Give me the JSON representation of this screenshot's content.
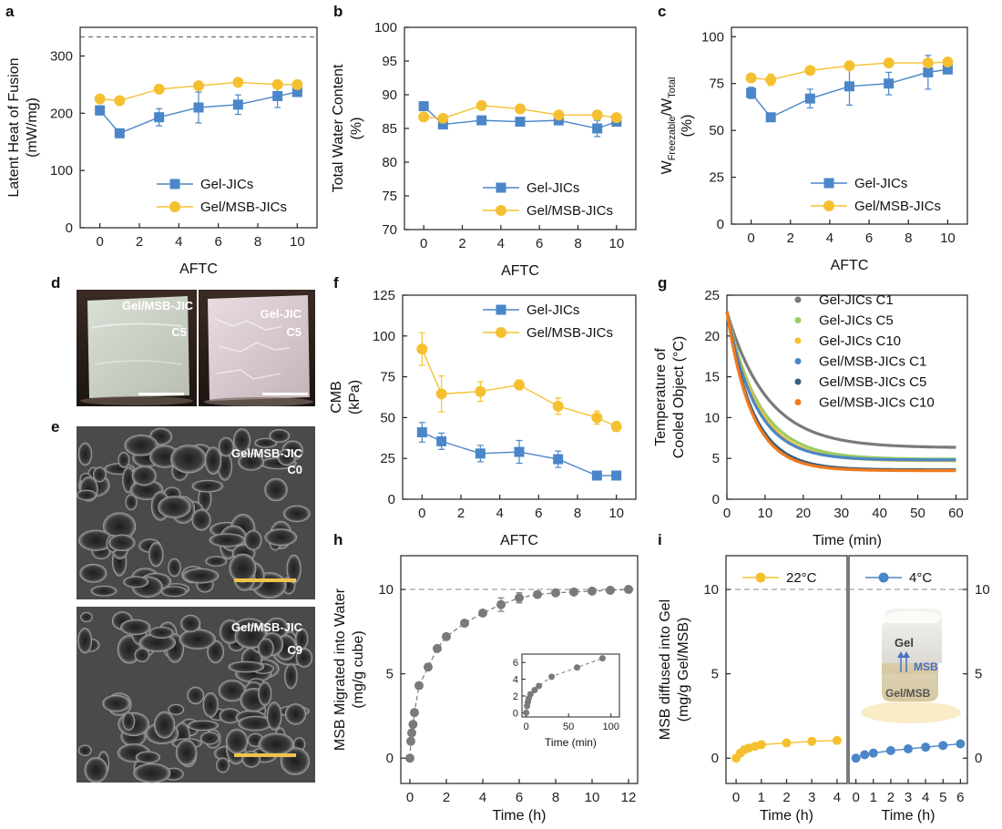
{
  "colors": {
    "blue": "#4a86c8",
    "yellow": "#f5c030",
    "gray": "#7a7a7a",
    "green": "#9ccc65",
    "orange": "#f07a1e",
    "darkblue": "#3a5f7d",
    "scalebar": "#f2c24e"
  },
  "panel_labels": {
    "a": "a",
    "b": "b",
    "c": "c",
    "d": "d",
    "e": "e",
    "f": "f",
    "g": "g",
    "h": "h",
    "i": "i"
  },
  "photo_labels": {
    "d1": [
      "Gel/MSB-JIC",
      "C5"
    ],
    "d2": [
      "Gel-JIC",
      "C5"
    ],
    "e1": [
      "Gel/MSB-JIC",
      "C0"
    ],
    "e2": [
      "Gel/MSB-JIC",
      "C9"
    ]
  },
  "cube_labels": {
    "top": "Gel",
    "arrow": "MSB",
    "bottom": "Gel/MSB"
  },
  "chart_data": [
    {
      "id": "a",
      "type": "line",
      "xlabel": "AFTC",
      "ylabel": [
        "Latent Heat of Fusion",
        "(mW/mg)"
      ],
      "xlim": [
        -1,
        11
      ],
      "ylim": [
        0,
        350
      ],
      "xticks": [
        0,
        2,
        4,
        6,
        8,
        10
      ],
      "yticks": [
        0,
        100,
        200,
        300
      ],
      "ref_line": 333,
      "legend": "lower-right",
      "series": [
        {
          "name": "Gel-JICs",
          "color": "blue",
          "marker": "square",
          "x": [
            0,
            1,
            3,
            5,
            7,
            9,
            10
          ],
          "y": [
            205,
            165,
            193,
            210,
            215,
            230,
            237
          ],
          "err": [
            8,
            3,
            15,
            27,
            17,
            20,
            5
          ]
        },
        {
          "name": "Gel/MSB-JICs",
          "color": "yellow",
          "marker": "circle",
          "x": [
            0,
            1,
            3,
            5,
            7,
            9,
            10
          ],
          "y": [
            225,
            222,
            242,
            248,
            254,
            250,
            250
          ],
          "err": [
            5,
            5,
            6,
            5,
            5,
            5,
            5
          ]
        }
      ]
    },
    {
      "id": "b",
      "type": "line",
      "xlabel": "AFTC",
      "ylabel": [
        "Total Water Content",
        "(%)"
      ],
      "xlim": [
        -1,
        11
      ],
      "ylim": [
        70,
        100
      ],
      "xticks": [
        0,
        2,
        4,
        6,
        8,
        10
      ],
      "yticks": [
        70,
        75,
        80,
        85,
        90,
        95,
        100
      ],
      "legend": "lower-right",
      "series": [
        {
          "name": "Gel-JICs",
          "color": "blue",
          "marker": "square",
          "x": [
            0,
            1,
            3,
            5,
            7,
            9,
            10
          ],
          "y": [
            88.3,
            85.6,
            86.2,
            86.0,
            86.2,
            85.0,
            86.0
          ],
          "err": [
            0.4,
            0.5,
            0.3,
            0.3,
            0.3,
            1.2,
            0.3
          ]
        },
        {
          "name": "Gel/MSB-JICs",
          "color": "yellow",
          "marker": "circle",
          "x": [
            0,
            1,
            3,
            5,
            7,
            9,
            10
          ],
          "y": [
            86.7,
            86.5,
            88.4,
            87.9,
            87.0,
            87.0,
            86.6
          ],
          "err": [
            0.3,
            0.3,
            0.3,
            0.3,
            0.5,
            0.6,
            0.4
          ]
        }
      ]
    },
    {
      "id": "c",
      "type": "line",
      "xlabel": "AFTC",
      "ylabel_main": "W",
      "ylabel_sub1": "Freezable",
      "ylabel_mid": "/W",
      "ylabel_sub2": "Total",
      "ylabel_unit": "(%)",
      "xlim": [
        -1,
        11
      ],
      "ylim": [
        0,
        105
      ],
      "xticks": [
        0,
        2,
        4,
        6,
        8,
        10
      ],
      "yticks": [
        0,
        25,
        50,
        75,
        100
      ],
      "legend": "lower-right",
      "series": [
        {
          "name": "Gel-JICs",
          "color": "blue",
          "marker": "square",
          "x": [
            0,
            1,
            3,
            5,
            7,
            9,
            10
          ],
          "y": [
            70,
            57,
            67,
            73.5,
            75,
            81,
            82.5
          ],
          "err": [
            3,
            1,
            5,
            10,
            6,
            9,
            2
          ]
        },
        {
          "name": "Gel/MSB-JICs",
          "color": "yellow",
          "marker": "circle",
          "x": [
            0,
            1,
            3,
            5,
            7,
            9,
            10
          ],
          "y": [
            78,
            77,
            82,
            84.5,
            86,
            86,
            86.5
          ],
          "err": [
            2,
            3,
            2,
            1.5,
            1.5,
            2,
            1.5
          ]
        }
      ]
    },
    {
      "id": "f",
      "type": "line",
      "xlabel": "AFTC",
      "ylabel": [
        "CMB",
        "(kPa)"
      ],
      "xlim": [
        -1,
        11
      ],
      "ylim": [
        0,
        125
      ],
      "xticks": [
        0,
        2,
        4,
        6,
        8,
        10
      ],
      "yticks": [
        0,
        25,
        50,
        75,
        100,
        125
      ],
      "legend": "top-right",
      "series": [
        {
          "name": "Gel-JICs",
          "color": "blue",
          "marker": "square",
          "x": [
            0,
            1,
            3,
            5,
            7,
            9,
            10
          ],
          "y": [
            41,
            35.5,
            28,
            29,
            24.5,
            14.5,
            14.5
          ],
          "err": [
            6,
            5,
            5,
            7,
            5,
            2,
            1
          ]
        },
        {
          "name": "Gel/MSB-JICs",
          "color": "yellow",
          "marker": "circle",
          "x": [
            0,
            1,
            3,
            5,
            7,
            9,
            10
          ],
          "y": [
            92,
            64.5,
            66,
            70,
            57,
            50,
            44.5
          ],
          "err": [
            10,
            11,
            6,
            3,
            5,
            4,
            3
          ]
        }
      ]
    },
    {
      "id": "g",
      "type": "line",
      "xlabel": "Time (min)",
      "ylabel": [
        "Temperature of",
        "Cooled Object (°C)"
      ],
      "xlim": [
        0,
        63
      ],
      "ylim": [
        0,
        25
      ],
      "xticks": [
        0,
        10,
        20,
        30,
        40,
        50,
        60
      ],
      "yticks": [
        0,
        5,
        10,
        15,
        20,
        25
      ],
      "legend": "top-right",
      "decay_model": {
        "start_temp": 23
      },
      "series": [
        {
          "name": "Gel-JICs C1",
          "color": "gray",
          "final": 6.3,
          "tau": 10.5
        },
        {
          "name": "Gel-JICs C5",
          "color": "green",
          "final": 4.9,
          "tau": 8.5
        },
        {
          "name": "Gel-JICs C10",
          "color": "yellow",
          "final": 4.7,
          "tau": 8.0
        },
        {
          "name": "Gel/MSB-JICs C1",
          "color": "blue",
          "final": 4.8,
          "tau": 7.5
        },
        {
          "name": "Gel/MSB-JICs C5",
          "color": "darkblue",
          "final": 3.6,
          "tau": 6.8
        },
        {
          "name": "Gel/MSB-JICs C10",
          "color": "orange",
          "final": 3.5,
          "tau": 6.5
        }
      ]
    },
    {
      "id": "h",
      "type": "scatter",
      "xlabel": "Time (h)",
      "ylabel": [
        "MSB Migrated into Water",
        "(mg/g cube)"
      ],
      "xlim": [
        -0.5,
        12.5
      ],
      "ylim": [
        -1.5,
        12
      ],
      "xticks": [
        0,
        2,
        4,
        6,
        8,
        10,
        12
      ],
      "yticks": [
        0,
        5,
        10
      ],
      "ref_line": 10,
      "series": [
        {
          "color": "gray",
          "x": [
            0,
            0.05,
            0.1,
            0.17,
            0.25,
            0.5,
            1,
            1.5,
            2,
            3,
            4,
            5,
            6,
            7,
            8,
            9,
            10,
            11,
            12
          ],
          "y": [
            0,
            1,
            1.5,
            2,
            2.7,
            4.3,
            5.4,
            6.5,
            7.2,
            8.0,
            8.6,
            9.1,
            9.5,
            9.7,
            9.8,
            9.85,
            9.9,
            9.95,
            10.0
          ],
          "err": [
            0,
            0,
            0,
            0,
            0,
            0,
            0,
            0,
            0,
            0,
            0,
            0.4,
            0.3,
            0,
            0,
            0,
            0,
            0,
            0
          ]
        }
      ],
      "inset": {
        "xlabel": "Time (min)",
        "xlim": [
          -5,
          110
        ],
        "ylim": [
          -0.5,
          7
        ],
        "xticks": [
          0,
          50,
          100
        ],
        "yticks": [
          0,
          2,
          4,
          6
        ],
        "x": [
          0,
          1,
          2,
          3,
          5,
          10,
          15,
          30,
          60,
          90
        ],
        "y": [
          0,
          0.8,
          1.3,
          1.7,
          2.2,
          2.7,
          3.2,
          4.3,
          5.4,
          6.5
        ]
      }
    },
    {
      "id": "i",
      "type": "scatter",
      "ylabel": [
        "MSB diffused into Gel",
        "(mg/g Gel/MSB)"
      ],
      "ylim": [
        -1.5,
        12
      ],
      "yticks": [
        0,
        5,
        10
      ],
      "ref_line": 10,
      "panels": [
        {
          "name": "22°C",
          "xlabel": "Time (h)",
          "color": "yellow",
          "xlim": [
            -0.4,
            4.4
          ],
          "xticks": [
            0,
            1,
            2,
            3,
            4
          ],
          "x": [
            0,
            0.17,
            0.33,
            0.5,
            0.75,
            1,
            2,
            3,
            4
          ],
          "y": [
            0,
            0.3,
            0.5,
            0.6,
            0.7,
            0.8,
            0.9,
            1.0,
            1.05
          ]
        },
        {
          "name": "4°C",
          "xlabel": "Time (h)",
          "color": "blue",
          "xlim": [
            -0.4,
            6.4
          ],
          "xticks": [
            0,
            1,
            2,
            3,
            4,
            5,
            6
          ],
          "x": [
            0,
            0.5,
            1,
            2,
            3,
            4,
            5,
            6
          ],
          "y": [
            0,
            0.2,
            0.3,
            0.45,
            0.55,
            0.65,
            0.75,
            0.85
          ]
        }
      ]
    }
  ]
}
